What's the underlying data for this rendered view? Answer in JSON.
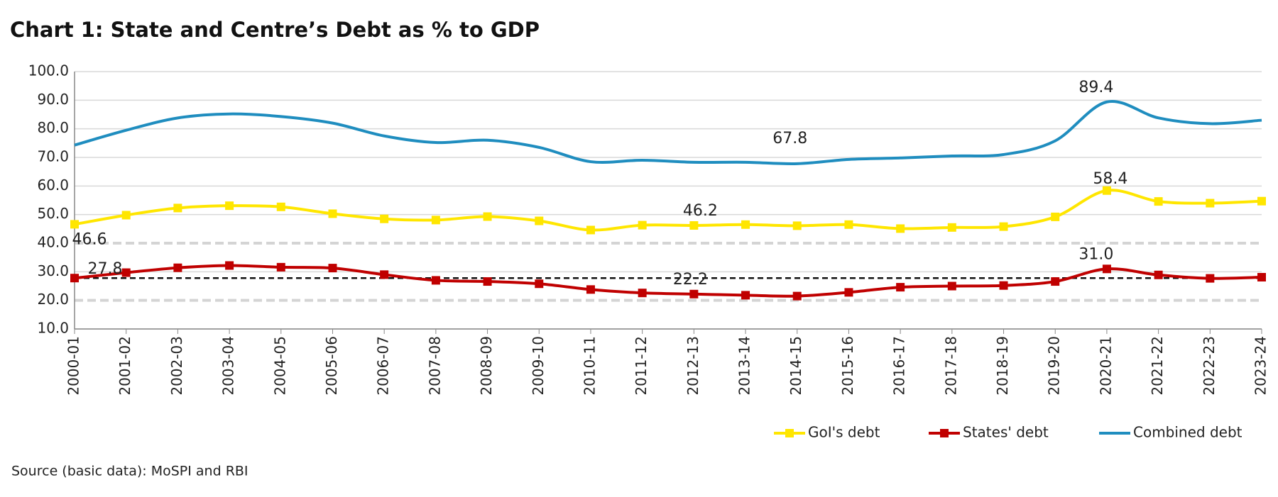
{
  "chart_data": {
    "type": "line",
    "title": "Chart 1: State and Centre’s Debt as % to GDP",
    "categories": [
      "2000-01",
      "2001-02",
      "2002-03",
      "2003-04",
      "2004-05",
      "2005-06",
      "2006-07",
      "2007-08",
      "2008-09",
      "2009-10",
      "2010-11",
      "2011-12",
      "2012-13",
      "2013-14",
      "2014-15",
      "2015-16",
      "2016-17",
      "2017-18",
      "2018-19",
      "2019-20",
      "2020-21",
      "2021-22",
      "2022-23",
      "2023-24"
    ],
    "series": [
      {
        "name": "GoI's debt",
        "color": "#ffe600",
        "marker": "square",
        "values": [
          46.6,
          49.8,
          52.3,
          53.1,
          52.7,
          50.3,
          48.5,
          48.1,
          49.3,
          47.8,
          44.6,
          46.3,
          46.2,
          46.5,
          46.1,
          46.5,
          45.1,
          45.5,
          45.8,
          49.2,
          58.4,
          54.6,
          54.0,
          54.7
        ],
        "value_labels": [
          "46.6",
          null,
          null,
          null,
          null,
          null,
          null,
          null,
          null,
          null,
          null,
          null,
          "46.2",
          null,
          null,
          null,
          null,
          null,
          null,
          null,
          "58.4",
          null,
          null,
          null
        ]
      },
      {
        "name": "States' debt",
        "color": "#c00000",
        "marker": "square",
        "values": [
          27.8,
          29.7,
          31.4,
          32.2,
          31.6,
          31.3,
          29.0,
          27.0,
          26.6,
          25.8,
          23.8,
          22.6,
          22.2,
          21.8,
          21.5,
          22.8,
          24.6,
          25.0,
          25.2,
          26.6,
          31.0,
          28.9,
          27.7,
          28.1
        ],
        "value_labels": [
          "27.8",
          null,
          null,
          null,
          null,
          null,
          null,
          null,
          null,
          null,
          null,
          null,
          "22.2",
          null,
          null,
          null,
          null,
          null,
          null,
          null,
          "31.0",
          null,
          null,
          null
        ]
      },
      {
        "name": "Combined debt",
        "color": "#1f8dbf",
        "marker": "none",
        "values": [
          74.3,
          79.5,
          83.8,
          85.2,
          84.3,
          82.0,
          77.5,
          75.2,
          76.0,
          73.5,
          68.5,
          69.0,
          68.3,
          68.3,
          67.8,
          69.3,
          69.8,
          70.5,
          71.0,
          75.8,
          89.4,
          83.8,
          81.8,
          83.0
        ],
        "value_labels": [
          null,
          null,
          null,
          null,
          null,
          null,
          null,
          null,
          null,
          null,
          null,
          null,
          null,
          null,
          "67.8",
          null,
          null,
          null,
          null,
          null,
          "89.4",
          null,
          null,
          null
        ]
      }
    ],
    "ylim": [
      10,
      100
    ],
    "yticks": [
      {
        "value": 10,
        "label": "10.0"
      },
      {
        "value": 20,
        "label": "20.0"
      },
      {
        "value": 30,
        "label": "30.0"
      },
      {
        "value": 40,
        "label": "40.0"
      },
      {
        "value": 50,
        "label": "50.0"
      },
      {
        "value": 60,
        "label": "60.0"
      },
      {
        "value": 70,
        "label": "70.0"
      },
      {
        "value": 80,
        "label": "80.0"
      },
      {
        "value": 90,
        "label": "90.0"
      },
      {
        "value": 100,
        "label": "100.0"
      }
    ],
    "grid": true,
    "dashed_gridlines": [
      20,
      40
    ],
    "reference_line": 27.8,
    "legend": "bottom-right"
  },
  "source": "Source (basic data): MoSPI and RBI"
}
